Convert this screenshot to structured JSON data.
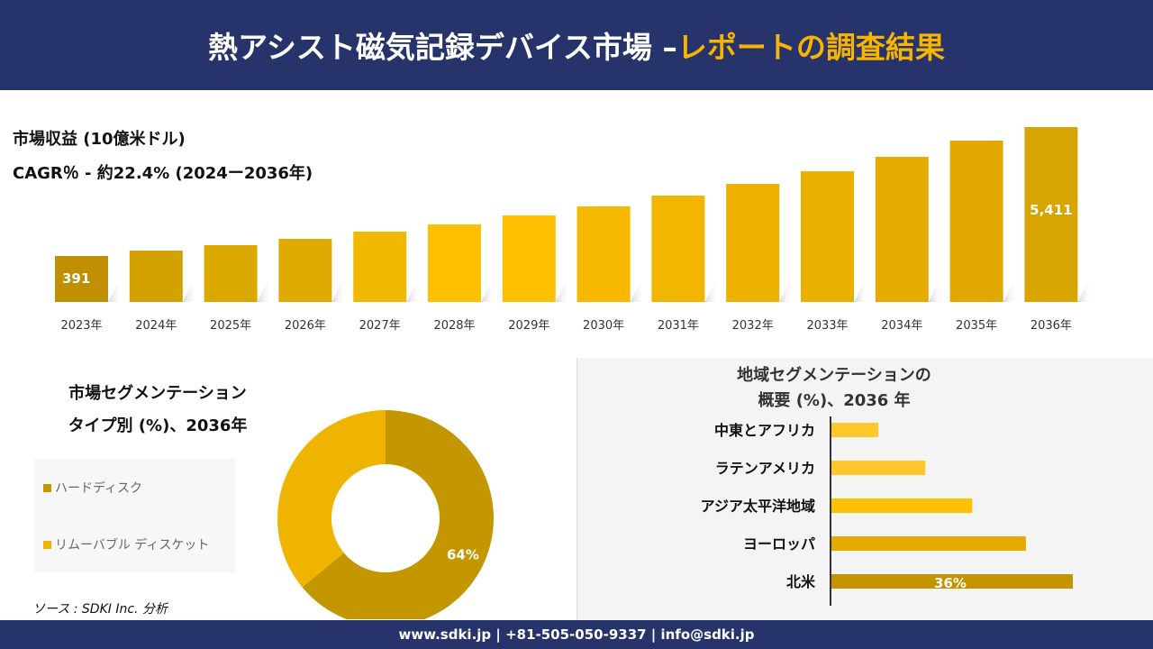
{
  "header": {
    "title_main": "熱アシスト磁気記録デバイス市場 –",
    "title_accent": "レポートの調査結果"
  },
  "revenue": {
    "title": "市場収益 (10億米ドル)",
    "cagr": "CAGR％ - 約22.4% (2024ー2036年)"
  },
  "chart_data": [
    {
      "type": "bar",
      "title": "市場収益 (10億米ドル)",
      "categories": [
        "2023年",
        "2024年",
        "2025年",
        "2026年",
        "2027年",
        "2028年",
        "2029年",
        "2030年",
        "2031年",
        "2032年",
        "2033年",
        "2034年",
        "2035年",
        "2036年"
      ],
      "values": [
        391,
        602,
        813,
        1059,
        1340,
        1621,
        1972,
        2323,
        2744,
        3200,
        3692,
        4254,
        4885,
        5411
      ],
      "data_labels": {
        "0": "391",
        "13": "5,411"
      },
      "colors": [
        "#c09000",
        "#d4a200",
        "#dba800",
        "#e0ab00",
        "#f0b800",
        "#ffc000",
        "#ffc000",
        "#f7b900",
        "#f2b500",
        "#eeb100",
        "#eab000",
        "#e5ab00",
        "#e0a800",
        "#d8a400"
      ]
    },
    {
      "type": "pie",
      "title": "市場セグメンテーション タイプ別 (%)、2036年",
      "labels": [
        "ハードディスク",
        "リムーバブル ディスケット"
      ],
      "values": [
        64,
        36
      ],
      "colors": [
        "#c49700",
        "#eeb400"
      ],
      "data_labels": [
        "64%",
        ""
      ]
    },
    {
      "type": "bar",
      "orientation": "horizontal",
      "title": "地域セグメンテーションの 概要 (%)、2036 年",
      "categories": [
        "中東とアフリカ",
        "ラテンアメリカ",
        "アジア太平洋地域",
        "ヨーロッパ",
        "北米"
      ],
      "values": [
        7,
        14,
        21,
        29,
        36
      ],
      "data_labels": [
        "",
        "",
        "",
        "",
        "36%"
      ],
      "colors": [
        "#ffc72c",
        "#ffc72c",
        "#ffc000",
        "#e5ab00",
        "#c49300"
      ]
    }
  ],
  "segment": {
    "title_line1": "市場セグメンテーション",
    "title_line2": "タイプ別 (%)、2036年"
  },
  "region": {
    "title_line1": "地域セグメンテーションの",
    "title_line2": "概要 (%)、2036 年"
  },
  "source": "ソース : SDKI Inc. 分析",
  "footer": "www.sdki.jp | +81-505-050-9337 | info@sdki.jp"
}
